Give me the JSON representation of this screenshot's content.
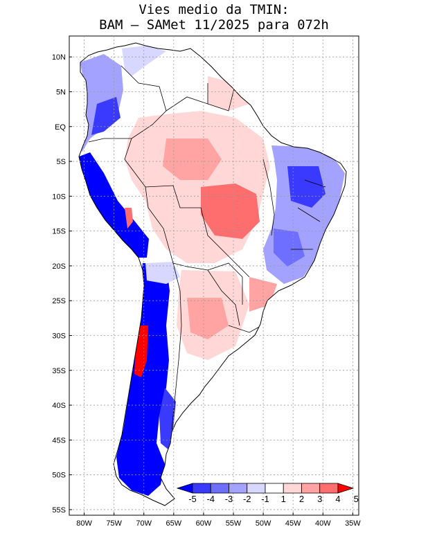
{
  "title": {
    "line1": "Vies medio da TMIN:",
    "line2": "BAM – SAMet 11/2025  para 072h"
  },
  "map": {
    "lat_labels": [
      {
        "label": "10N",
        "lat": 10
      },
      {
        "label": "5N",
        "lat": 5
      },
      {
        "label": "EQ",
        "lat": 0
      },
      {
        "label": "5S",
        "lat": -5
      },
      {
        "label": "10S",
        "lat": -10
      },
      {
        "label": "15S",
        "lat": -15
      },
      {
        "label": "20S",
        "lat": -20
      },
      {
        "label": "25S",
        "lat": -25
      },
      {
        "label": "30S",
        "lat": -30
      },
      {
        "label": "35S",
        "lat": -35
      },
      {
        "label": "40S",
        "lat": -40
      },
      {
        "label": "45S",
        "lat": -45
      },
      {
        "label": "50S",
        "lat": -50
      },
      {
        "label": "55S",
        "lat": -55
      }
    ],
    "lon_labels": [
      {
        "label": "80W",
        "lon": -80
      },
      {
        "label": "75W",
        "lon": -75
      },
      {
        "label": "70W",
        "lon": -70
      },
      {
        "label": "65W",
        "lon": -65
      },
      {
        "label": "60W",
        "lon": -60
      },
      {
        "label": "55W",
        "lon": -55
      },
      {
        "label": "50W",
        "lon": -50
      },
      {
        "label": "45W",
        "lon": -45
      },
      {
        "label": "40W",
        "lon": -40
      },
      {
        "label": "35W",
        "lon": -35
      }
    ],
    "lon_range": [
      -82.5,
      -34
    ],
    "lat_range": [
      -55.8,
      13
    ]
  },
  "legend": {
    "labels": [
      "-5",
      "-4",
      "-3",
      "-2",
      "-1",
      "1",
      "2",
      "3",
      "4",
      "5"
    ],
    "colors": [
      "#0000ff",
      "#3a3aff",
      "#6e6eff",
      "#a3a3ff",
      "#d7d7ff",
      "#ffffff",
      "#ffd7d7",
      "#ffa3a3",
      "#ff6e6e",
      "#ff0000"
    ]
  },
  "colors": {
    "land_neutral": "#ffffff",
    "coast": "#000000",
    "grid": "#999999"
  }
}
